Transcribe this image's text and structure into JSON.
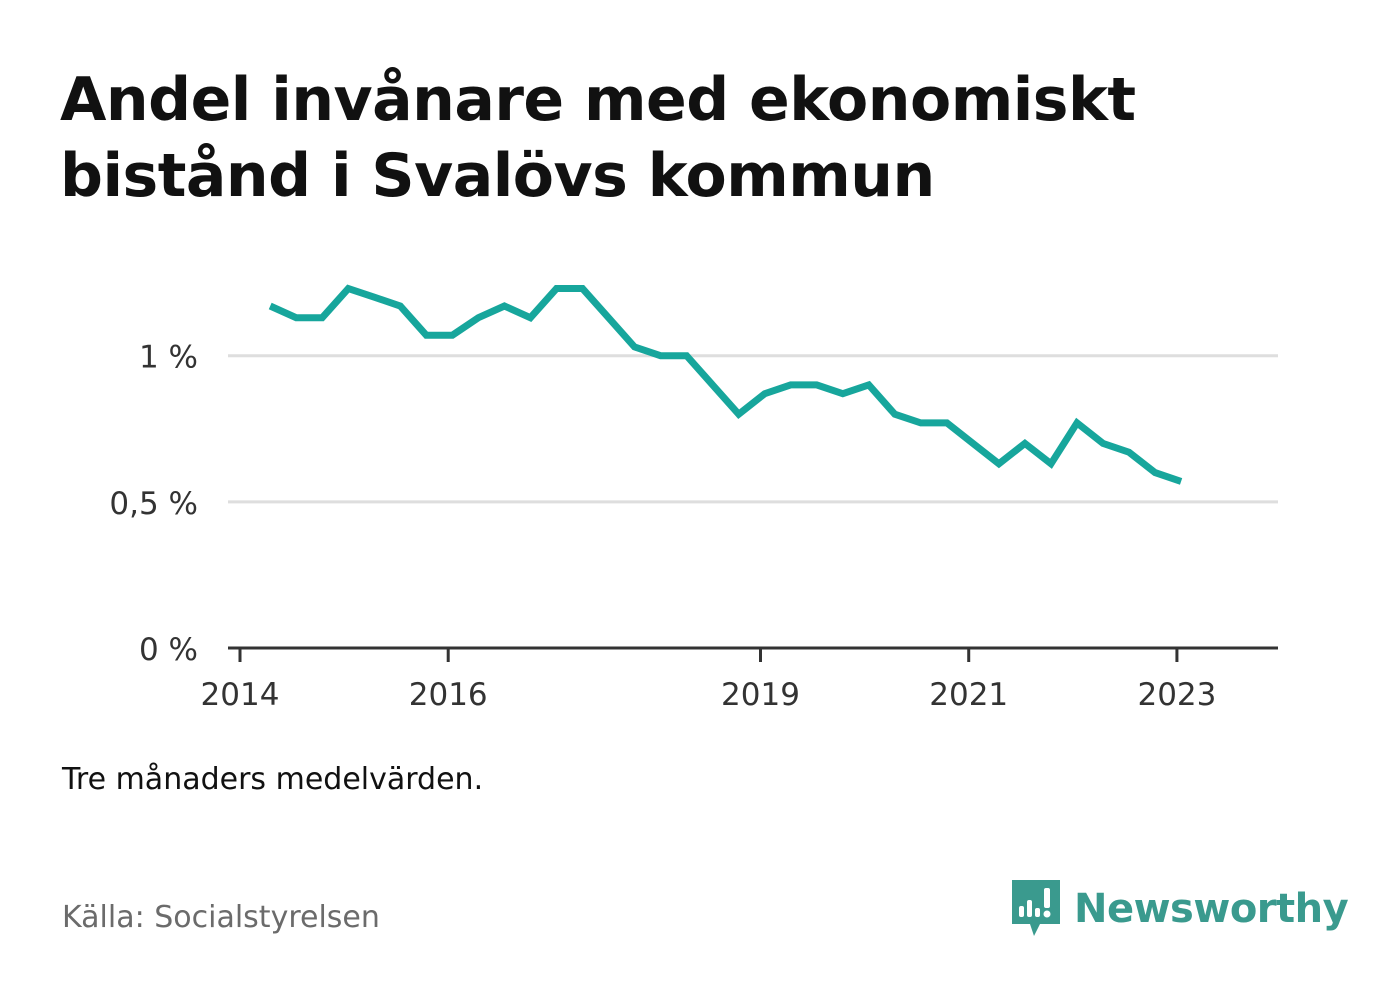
{
  "title": "Andel invånare med ekonomiskt bistånd i Svalövs kommun",
  "note": "Tre månaders medelvärden.",
  "source": "Källa: Socialstyrelsen",
  "brand": {
    "name": "Newsworthy",
    "icon": "newsworthy-logo-icon",
    "color": "#3a9a8e"
  },
  "chart_data": {
    "type": "line",
    "line_color": "#17a69c",
    "grid": true,
    "xlim": [
      2014,
      2023.75
    ],
    "ylim": [
      0,
      1.3
    ],
    "y_ticks": [
      {
        "value": 0,
        "label": "0 %"
      },
      {
        "value": 0.5,
        "label": "0,5 %"
      },
      {
        "value": 1,
        "label": "1 %"
      }
    ],
    "x_ticks": [
      {
        "value": 2014,
        "label": "2014"
      },
      {
        "value": 2016,
        "label": "2016"
      },
      {
        "value": 2019,
        "label": "2019"
      },
      {
        "value": 2021,
        "label": "2021"
      },
      {
        "value": 2023,
        "label": "2023"
      }
    ],
    "series": [
      {
        "x": [
          2014.29,
          2014.54,
          2014.79,
          2015.04,
          2015.29,
          2015.54,
          2015.79,
          2016.04,
          2016.29,
          2016.54,
          2016.79,
          2017.04,
          2017.29,
          2017.54,
          2017.79,
          2018.04,
          2018.29,
          2018.54,
          2018.79,
          2019.04,
          2019.29,
          2019.54,
          2019.79,
          2020.04,
          2020.29,
          2020.54,
          2020.79,
          2021.04,
          2021.29,
          2021.54,
          2021.79,
          2022.04,
          2022.29,
          2022.54,
          2022.79,
          2023.04
        ],
        "values": [
          1.17,
          1.13,
          1.13,
          1.23,
          1.2,
          1.17,
          1.07,
          1.07,
          1.13,
          1.17,
          1.13,
          1.23,
          1.23,
          1.13,
          1.03,
          1.0,
          1.0,
          0.9,
          0.8,
          0.87,
          0.9,
          0.9,
          0.87,
          0.9,
          0.8,
          0.77,
          0.77,
          0.7,
          0.63,
          0.7,
          0.63,
          0.77,
          0.7,
          0.67,
          0.6,
          0.57
        ]
      }
    ]
  }
}
